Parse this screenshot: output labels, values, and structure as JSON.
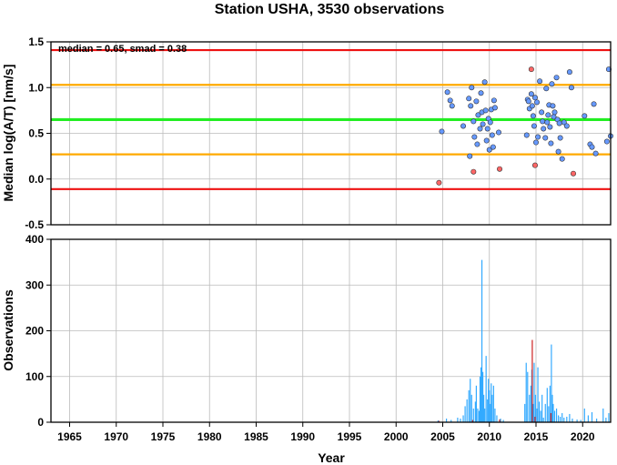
{
  "title": "Station USHA, 3530 observations",
  "chart_data": [
    {
      "type": "scatter",
      "ylabel": "Median log(A/T) [nm/s]",
      "xlim": [
        1963,
        2023
      ],
      "ylim": [
        -0.5,
        1.5
      ],
      "yticks": [
        -0.5,
        0.0,
        0.5,
        1.0,
        1.5
      ],
      "ytick_labels": [
        "-0.5",
        "0.0",
        "0.5",
        "1.0",
        "1.5"
      ],
      "grid": true,
      "annotation": "median = 0.65, smad = 0.38",
      "reference_lines": [
        {
          "y": 1.41,
          "color": "#ee1111"
        },
        {
          "y": 1.03,
          "color": "#ffaa00"
        },
        {
          "y": 0.65,
          "color": "#22ee22"
        },
        {
          "y": 0.27,
          "color": "#ffaa00"
        },
        {
          "y": -0.11,
          "color": "#ee1111"
        }
      ],
      "series": [
        {
          "color": "#6699ff",
          "points": [
            [
              2004.9,
              0.52
            ],
            [
              2005.5,
              0.95
            ],
            [
              2005.8,
              0.86
            ],
            [
              2006.0,
              0.8
            ],
            [
              2007.2,
              0.58
            ],
            [
              2007.8,
              0.88
            ],
            [
              2007.9,
              0.25
            ],
            [
              2008.0,
              0.8
            ],
            [
              2008.1,
              1.0
            ],
            [
              2008.3,
              0.63
            ],
            [
              2008.4,
              0.46
            ],
            [
              2008.6,
              0.85
            ],
            [
              2008.7,
              0.38
            ],
            [
              2008.8,
              0.7
            ],
            [
              2009.0,
              0.55
            ],
            [
              2009.1,
              0.94
            ],
            [
              2009.2,
              0.73
            ],
            [
              2009.3,
              0.6
            ],
            [
              2009.5,
              1.06
            ],
            [
              2009.6,
              0.75
            ],
            [
              2009.7,
              0.42
            ],
            [
              2009.8,
              0.55
            ],
            [
              2009.9,
              0.66
            ],
            [
              2010.0,
              0.32
            ],
            [
              2010.1,
              0.62
            ],
            [
              2010.2,
              0.76
            ],
            [
              2010.3,
              0.48
            ],
            [
              2010.4,
              0.35
            ],
            [
              2010.5,
              0.86
            ],
            [
              2010.6,
              0.78
            ],
            [
              2011.0,
              0.51
            ],
            [
              2014.0,
              0.48
            ],
            [
              2014.1,
              0.87
            ],
            [
              2014.2,
              0.85
            ],
            [
              2014.3,
              0.77
            ],
            [
              2014.5,
              0.93
            ],
            [
              2014.6,
              0.8
            ],
            [
              2014.7,
              0.69
            ],
            [
              2014.8,
              0.58
            ],
            [
              2014.9,
              0.89
            ],
            [
              2015.0,
              0.4
            ],
            [
              2015.1,
              0.84
            ],
            [
              2015.2,
              0.46
            ],
            [
              2015.4,
              1.07
            ],
            [
              2015.6,
              0.73
            ],
            [
              2015.7,
              0.63
            ],
            [
              2015.8,
              0.55
            ],
            [
              2016.0,
              0.45
            ],
            [
              2016.1,
              0.99
            ],
            [
              2016.2,
              0.62
            ],
            [
              2016.3,
              0.7
            ],
            [
              2016.4,
              0.81
            ],
            [
              2016.5,
              0.57
            ],
            [
              2016.6,
              0.39
            ],
            [
              2016.7,
              1.04
            ],
            [
              2016.8,
              0.8
            ],
            [
              2016.9,
              0.68
            ],
            [
              2017.0,
              0.73
            ],
            [
              2017.2,
              1.11
            ],
            [
              2017.3,
              0.65
            ],
            [
              2017.4,
              0.3
            ],
            [
              2017.5,
              0.61
            ],
            [
              2017.6,
              0.45
            ],
            [
              2017.8,
              0.22
            ],
            [
              2018.0,
              0.62
            ],
            [
              2018.3,
              0.58
            ],
            [
              2018.6,
              1.17
            ],
            [
              2018.8,
              1.0
            ],
            [
              2020.2,
              0.69
            ],
            [
              2020.8,
              0.38
            ],
            [
              2021.0,
              0.35
            ],
            [
              2021.2,
              0.82
            ],
            [
              2021.4,
              0.28
            ],
            [
              2022.6,
              0.41
            ],
            [
              2022.8,
              1.2
            ],
            [
              2023.0,
              0.47
            ]
          ]
        },
        {
          "color": "#ff6666",
          "points": [
            [
              2004.6,
              -0.04
            ],
            [
              2008.3,
              0.08
            ],
            [
              2011.1,
              0.11
            ],
            [
              2014.5,
              1.2
            ],
            [
              2014.9,
              0.15
            ],
            [
              2019.0,
              0.06
            ]
          ]
        }
      ]
    },
    {
      "type": "bar",
      "xlabel": "Year",
      "ylabel": "Observations",
      "xlim": [
        1963,
        2023
      ],
      "ylim": [
        0,
        400
      ],
      "yticks": [
        0,
        100,
        200,
        300,
        400
      ],
      "ytick_labels": [
        "0",
        "100",
        "200",
        "300",
        "400"
      ],
      "xticks": [
        1965,
        1970,
        1975,
        1980,
        1985,
        1990,
        1995,
        2000,
        2005,
        2010,
        2015,
        2020
      ],
      "xtick_labels": [
        "1965",
        "1970",
        "1975",
        "1980",
        "1985",
        "1990",
        "1995",
        "2000",
        "2005",
        "2010",
        "2015",
        "2020"
      ],
      "grid": true,
      "series": [
        {
          "color": "#33aaff",
          "points": [
            [
              2004.5,
              4
            ],
            [
              2005.4,
              8
            ],
            [
              2005.9,
              5
            ],
            [
              2006.6,
              10
            ],
            [
              2006.9,
              8
            ],
            [
              2007.2,
              15
            ],
            [
              2007.4,
              35
            ],
            [
              2007.6,
              50
            ],
            [
              2007.8,
              70
            ],
            [
              2007.95,
              95
            ],
            [
              2008.1,
              60
            ],
            [
              2008.3,
              30
            ],
            [
              2008.5,
              45
            ],
            [
              2008.6,
              80
            ],
            [
              2008.75,
              30
            ],
            [
              2008.9,
              25
            ],
            [
              2009.0,
              100
            ],
            [
              2009.1,
              120
            ],
            [
              2009.2,
              355
            ],
            [
              2009.3,
              110
            ],
            [
              2009.4,
              60
            ],
            [
              2009.5,
              30
            ],
            [
              2009.65,
              145
            ],
            [
              2009.8,
              50
            ],
            [
              2009.9,
              95
            ],
            [
              2010.0,
              70
            ],
            [
              2010.1,
              40
            ],
            [
              2010.2,
              85
            ],
            [
              2010.3,
              60
            ],
            [
              2010.45,
              80
            ],
            [
              2010.6,
              30
            ],
            [
              2010.8,
              15
            ],
            [
              2011.2,
              8
            ],
            [
              2011.5,
              5
            ],
            [
              2013.8,
              40
            ],
            [
              2013.95,
              130
            ],
            [
              2014.1,
              110
            ],
            [
              2014.3,
              60
            ],
            [
              2014.45,
              80
            ],
            [
              2014.55,
              115
            ],
            [
              2014.7,
              40
            ],
            [
              2014.8,
              130
            ],
            [
              2014.95,
              60
            ],
            [
              2015.1,
              30
            ],
            [
              2015.2,
              120
            ],
            [
              2015.35,
              45
            ],
            [
              2015.5,
              25
            ],
            [
              2015.65,
              60
            ],
            [
              2015.8,
              10
            ],
            [
              2016.0,
              40
            ],
            [
              2016.2,
              75
            ],
            [
              2016.35,
              35
            ],
            [
              2016.5,
              80
            ],
            [
              2016.65,
              170
            ],
            [
              2016.75,
              60
            ],
            [
              2016.85,
              40
            ],
            [
              2017.0,
              25
            ],
            [
              2017.2,
              30
            ],
            [
              2017.4,
              15
            ],
            [
              2017.6,
              12
            ],
            [
              2017.8,
              20
            ],
            [
              2018.0,
              10
            ],
            [
              2018.3,
              12
            ],
            [
              2018.6,
              18
            ],
            [
              2018.9,
              8
            ],
            [
              2019.4,
              6
            ],
            [
              2019.8,
              5
            ],
            [
              2020.2,
              30
            ],
            [
              2020.6,
              15
            ],
            [
              2021.0,
              22
            ],
            [
              2021.5,
              8
            ],
            [
              2022.2,
              30
            ],
            [
              2022.5,
              10
            ],
            [
              2022.8,
              20
            ]
          ]
        },
        {
          "color": "#cc2222",
          "points": [
            [
              2004.6,
              3
            ],
            [
              2008.2,
              5
            ],
            [
              2011.1,
              6
            ],
            [
              2014.6,
              180
            ],
            [
              2014.9,
              12
            ],
            [
              2016.6,
              20
            ]
          ]
        }
      ]
    }
  ]
}
